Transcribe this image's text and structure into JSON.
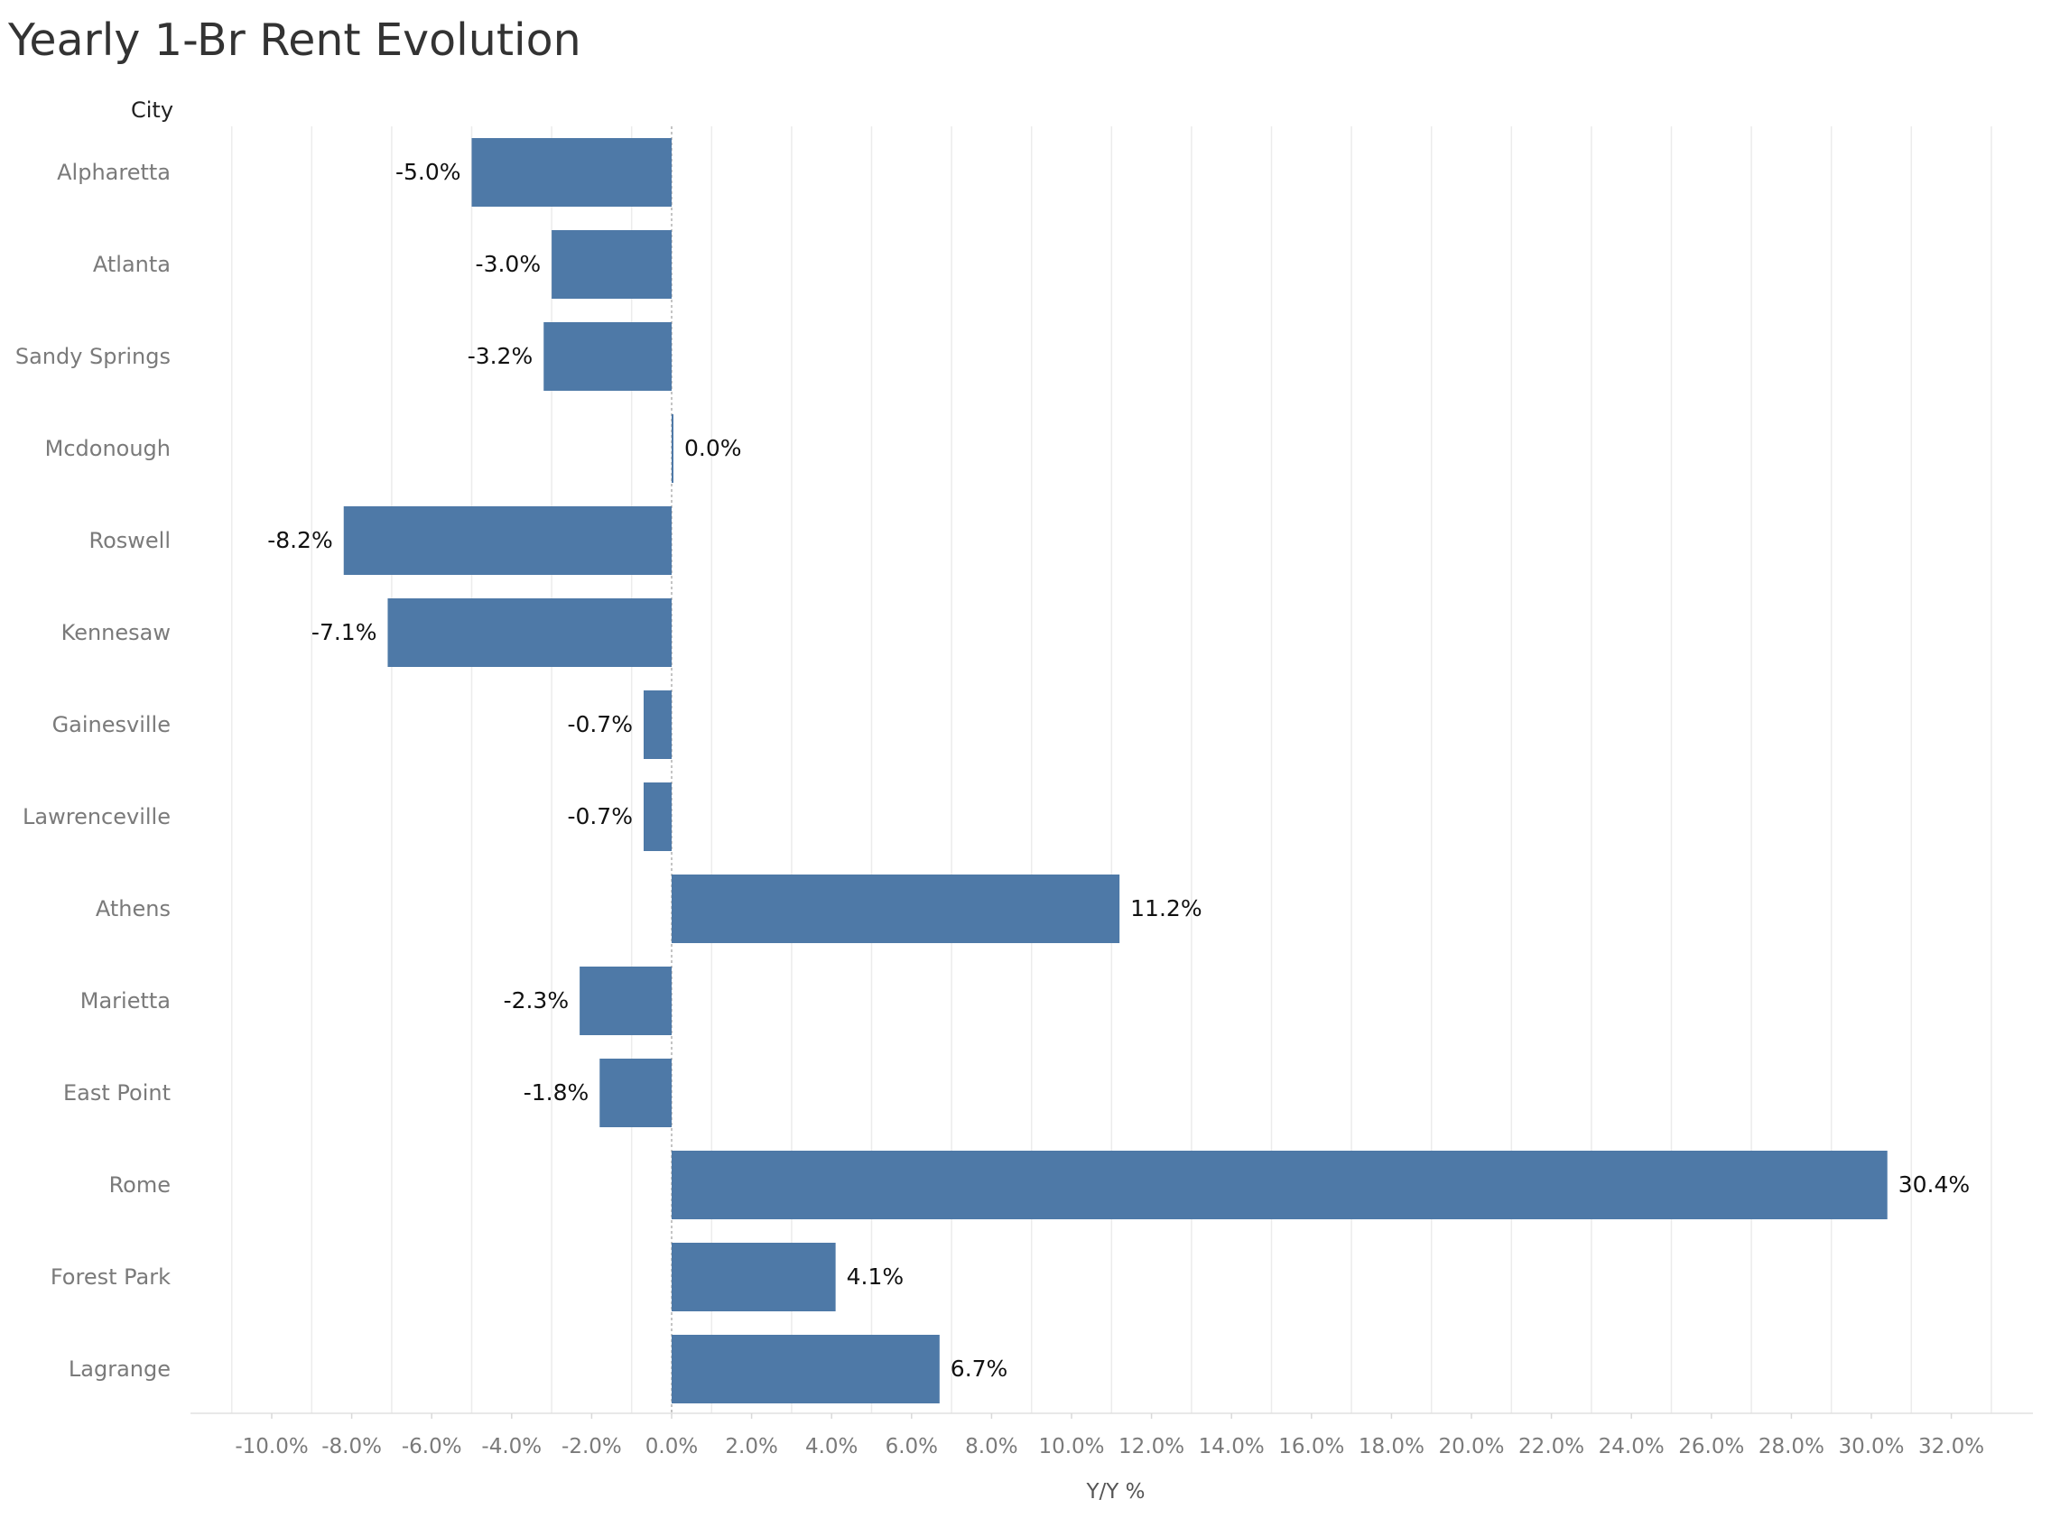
{
  "chart_data": {
    "type": "bar",
    "orientation": "horizontal",
    "title": "Yearly 1-Br Rent Evolution",
    "row_header": "City",
    "xlabel": "Y/Y %",
    "categories": [
      "Alpharetta",
      "Atlanta",
      "Sandy Springs",
      "Mcdonough",
      "Roswell",
      "Kennesaw",
      "Gainesville",
      "Lawrenceville",
      "Athens",
      "Marietta",
      "East Point",
      "Rome",
      "Forest Park",
      "Lagrange"
    ],
    "values": [
      -5.0,
      -3.0,
      -3.2,
      0.0,
      -8.2,
      -7.1,
      -0.7,
      -0.7,
      11.2,
      -2.3,
      -1.8,
      30.4,
      4.1,
      6.7
    ],
    "data_labels": [
      "-5.0%",
      "-3.0%",
      "-3.2%",
      "0.0%",
      "-8.2%",
      "-7.1%",
      "-0.7%",
      "-0.7%",
      "11.2%",
      "-2.3%",
      "-1.8%",
      "30.4%",
      "4.1%",
      "6.7%"
    ],
    "xticks": [
      -10,
      -8,
      -6,
      -4,
      -2,
      0,
      2,
      4,
      6,
      8,
      10,
      12,
      14,
      16,
      18,
      20,
      22,
      24,
      26,
      28,
      30,
      32
    ],
    "xtick_labels": [
      "-10.0%",
      "-8.0%",
      "-6.0%",
      "-4.0%",
      "-2.0%",
      "0.0%",
      "2.0%",
      "4.0%",
      "6.0%",
      "8.0%",
      "10.0%",
      "12.0%",
      "14.0%",
      "16.0%",
      "18.0%",
      "20.0%",
      "22.0%",
      "24.0%",
      "26.0%",
      "28.0%",
      "30.0%",
      "32.0%"
    ],
    "xlim": [
      -12,
      34
    ],
    "grid": "vertical",
    "bar_color": "#4e79a7"
  }
}
